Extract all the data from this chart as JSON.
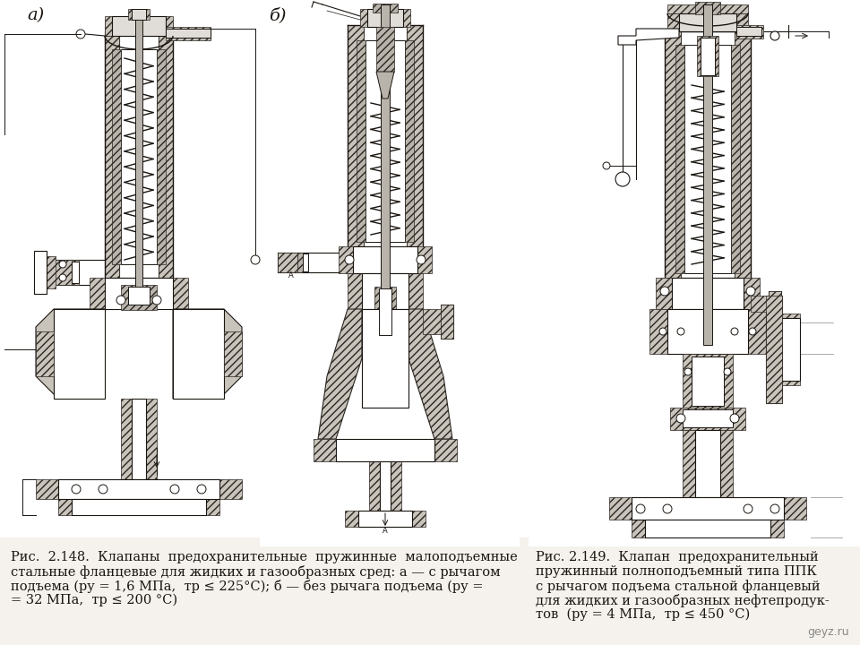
{
  "bg_color": "#f5f2ed",
  "line_color": "#1a1510",
  "hatch_color": "#2a2520",
  "caption_left": [
    "Рис.  2.148.  Клапаны  предохранительные  пружинные  малоподъемные",
    "стальные фланцевые для жидких и газообразных сред: а — с рычагом",
    "подъема (ру = 1,6 МПа,  тр ≤ 225°С); б — без рычага подъема (ру =",
    "= 32 МПа,  тр ≤ 200 °С)"
  ],
  "caption_right": [
    "Рис. 2.149.  Клапан  предохранительный",
    "пружинный полноподъемный типа ППК",
    "с рычагом подъема стальной фланцевый",
    "для жидких и газообразных нефтепродук-",
    "тов  (ру = 4 МПа,  тр ≤ 450 °С)"
  ],
  "label_a": "а)",
  "label_b": "б)",
  "watermark": "geyz.ru",
  "font_size": 10.5,
  "label_font_size": 14,
  "watermark_font_size": 9
}
